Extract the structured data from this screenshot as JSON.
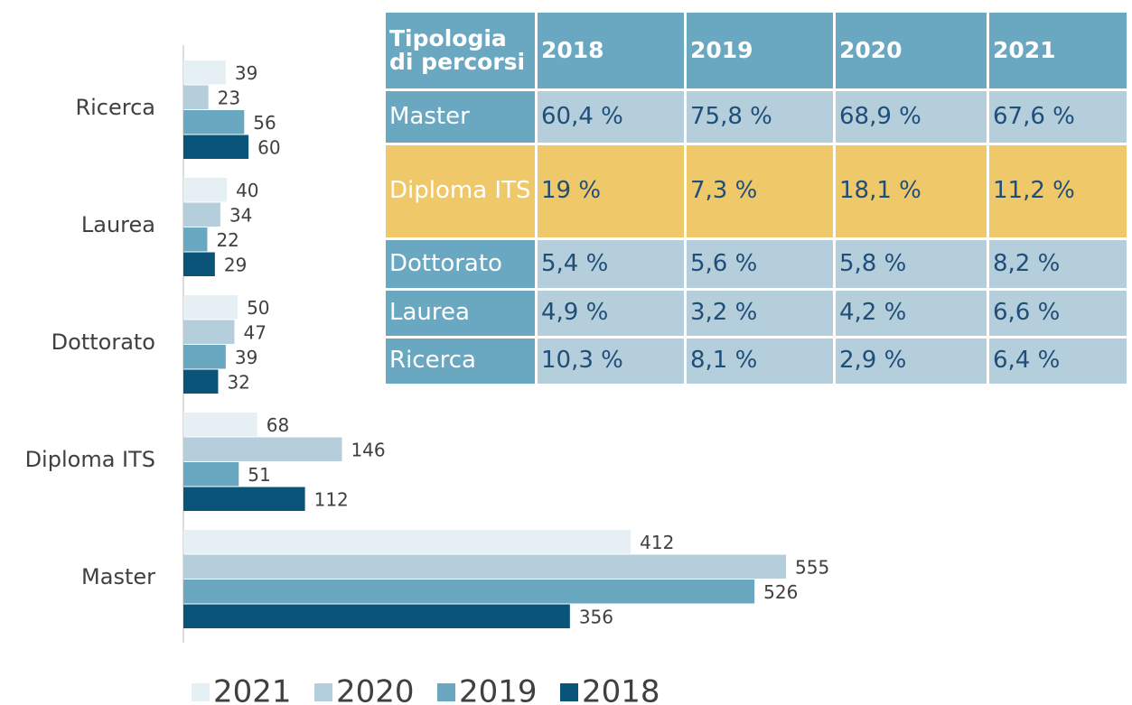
{
  "chart_data": {
    "type": "barh",
    "categories": [
      "Ricerca",
      "Laurea",
      "Dottorato",
      "Diploma ITS",
      "Master"
    ],
    "series": [
      {
        "name": "2021",
        "color": "#e6eff3",
        "values": [
          39,
          40,
          50,
          68,
          412
        ]
      },
      {
        "name": "2020",
        "color": "#b5cedb",
        "values": [
          23,
          34,
          47,
          146,
          555
        ]
      },
      {
        "name": "2019",
        "color": "#6aa7c0",
        "values": [
          56,
          22,
          39,
          51,
          526
        ]
      },
      {
        "name": "2018",
        "color": "#0b5479",
        "values": [
          60,
          29,
          32,
          112,
          356
        ]
      }
    ]
  },
  "table": {
    "header": [
      "Tipologia di percorsi",
      "2018",
      "2019",
      "2020",
      "2021"
    ],
    "rows": [
      [
        "Master",
        "60,4 %",
        "75,8 %",
        "68,9 %",
        "67,6 %"
      ],
      [
        "Diploma ITS",
        "19 %",
        "7,3 %",
        "18,1 %",
        "11,2 %"
      ],
      [
        "Dottorato",
        "5,4 %",
        "5,6 %",
        "5,8 %",
        "8,2 %"
      ],
      [
        "Laurea",
        "4,9 %",
        "3,2 %",
        "4,2 %",
        "6,6 %"
      ],
      [
        "Ricerca",
        "10,3 %",
        "8,1 %",
        "2,9 %",
        "6,4 %"
      ]
    ],
    "highlight": {
      "row": 1,
      "color": "#efc86a"
    }
  }
}
